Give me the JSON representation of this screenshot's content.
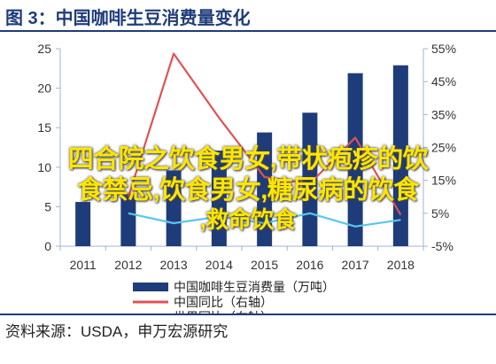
{
  "title": "图 3：中国咖啡生豆消费量变化",
  "source": "资料来源：USDA，申万宏源研究",
  "overlay_lines": [
    "四合院之饮食男女,带状疱疹的饮",
    "食禁忌,饮食男女,糖尿病的饮食",
    ",救命饮食"
  ],
  "colors": {
    "bar": "#1f3c7a",
    "china_yoy": "#e05252",
    "world_yoy": "#56c8ee",
    "axis": "#9fb4d4",
    "title": "#1f3c7a"
  },
  "chart_data": {
    "type": "bar",
    "categories": [
      "2011",
      "2012",
      "2013",
      "2014",
      "2015",
      "2016",
      "2017",
      "2018"
    ],
    "series": [
      {
        "name": "中国咖啡生豆消费量（万吨）",
        "type": "bar",
        "axis": "left",
        "values": [
          5.6,
          6.6,
          9.6,
          12.1,
          14.4,
          16.9,
          21.9,
          22.9
        ]
      },
      {
        "name": "中国同比（右轴）",
        "type": "line",
        "axis": "right",
        "values": [
          null,
          0.1,
          0.535,
          0.34,
          0.16,
          0.14,
          0.28,
          0.045
        ]
      },
      {
        "name": "世界同比（右轴）",
        "type": "line",
        "axis": "right",
        "values": [
          null,
          0.05,
          0.02,
          0.04,
          0.02,
          0.05,
          0.01,
          0.03
        ]
      }
    ],
    "left_axis": {
      "min": 0,
      "max": 25,
      "ticks": [
        "0",
        "5",
        "10",
        "15",
        "20",
        "25"
      ]
    },
    "right_axis": {
      "min": -0.05,
      "max": 0.55,
      "ticks": [
        "-5%",
        "5%",
        "15%",
        "25%",
        "35%",
        "45%",
        "55%"
      ]
    },
    "legend_position": "bottom"
  }
}
